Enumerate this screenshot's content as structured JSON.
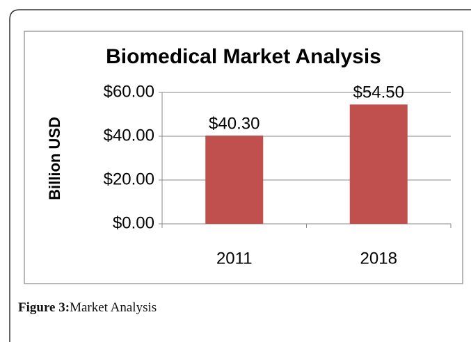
{
  "chart_data": {
    "type": "bar",
    "title": "Biomedical Market Analysis",
    "ylabel": "Billion USD",
    "categories": [
      "2011",
      "2018"
    ],
    "values": [
      40.3,
      54.5
    ],
    "value_labels": [
      "$40.30",
      "$54.50"
    ],
    "color": "#c0504d",
    "ylim": [
      0,
      60
    ],
    "yticks": [
      {
        "value": 0,
        "label": "$0.00"
      },
      {
        "value": 20,
        "label": "$20.00"
      },
      {
        "value": 40,
        "label": "$40.00"
      },
      {
        "value": 60,
        "label": "$60.00"
      }
    ],
    "grid": true
  },
  "caption": {
    "label": "Figure 3:",
    "text": "Market Analysis"
  }
}
